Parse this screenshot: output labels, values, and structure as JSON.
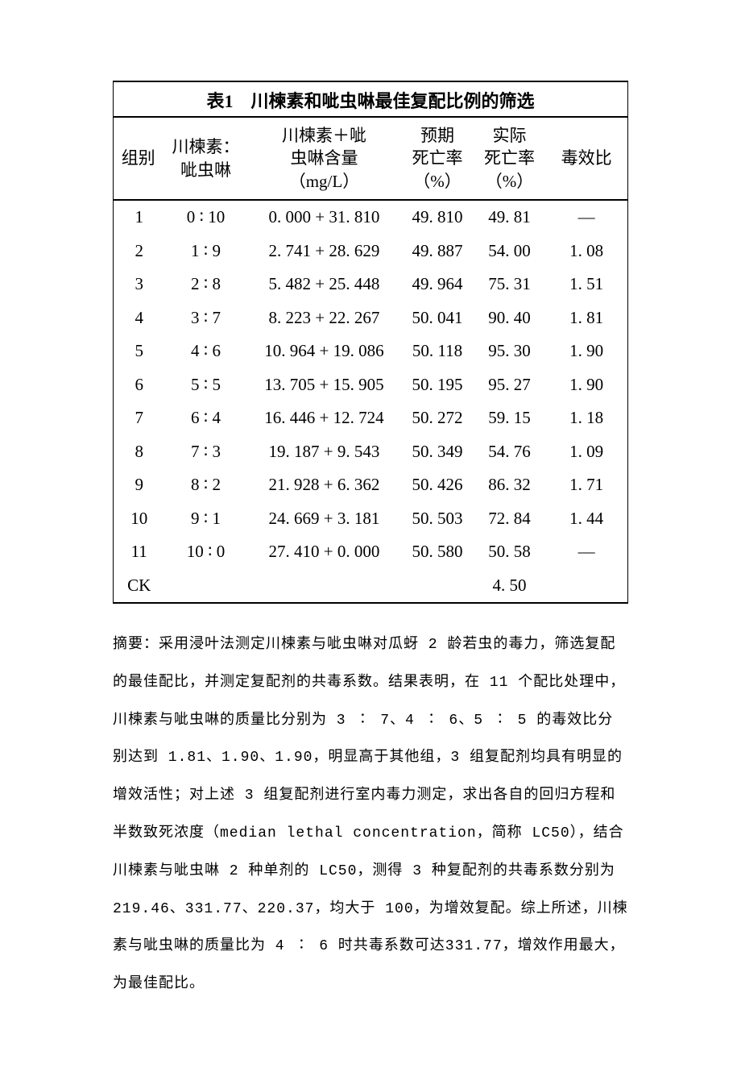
{
  "table": {
    "title": "表1　川楝素和呲虫啉最佳复配比例的筛选",
    "headers": {
      "group": "组别",
      "ratio": "川楝素：\n呲虫啉",
      "content": "川楝素＋呲\n虫啉含量\n（mg/L）",
      "expected": "预期\n死亡率\n（%）",
      "actual": "实际\n死亡率\n（%）",
      "toxratio": "毒效比"
    },
    "rows": [
      {
        "group": "1",
        "ratio": "0 ∶ 10",
        "content": "0. 000 + 31. 810",
        "expected": "49. 810",
        "actual": "49. 81",
        "toxratio": "—"
      },
      {
        "group": "2",
        "ratio": "1 ∶ 9",
        "content": "2. 741 + 28. 629",
        "expected": "49. 887",
        "actual": "54. 00",
        "toxratio": "1. 08"
      },
      {
        "group": "3",
        "ratio": "2 ∶ 8",
        "content": "5. 482 + 25. 448",
        "expected": "49. 964",
        "actual": "75. 31",
        "toxratio": "1. 51"
      },
      {
        "group": "4",
        "ratio": "3 ∶ 7",
        "content": "8. 223 + 22. 267",
        "expected": "50. 041",
        "actual": "90. 40",
        "toxratio": "1. 81"
      },
      {
        "group": "5",
        "ratio": "4 ∶ 6",
        "content": "10. 964 + 19. 086",
        "expected": "50. 118",
        "actual": "95. 30",
        "toxratio": "1. 90"
      },
      {
        "group": "6",
        "ratio": "5 ∶ 5",
        "content": "13. 705 + 15. 905",
        "expected": "50. 195",
        "actual": "95. 27",
        "toxratio": "1. 90"
      },
      {
        "group": "7",
        "ratio": "6 ∶ 4",
        "content": "16. 446 + 12. 724",
        "expected": "50. 272",
        "actual": "59. 15",
        "toxratio": "1. 18"
      },
      {
        "group": "8",
        "ratio": "7 ∶ 3",
        "content": "19. 187 + 9. 543",
        "expected": "50. 349",
        "actual": "54. 76",
        "toxratio": "1. 09"
      },
      {
        "group": "9",
        "ratio": "8 ∶ 2",
        "content": "21. 928 + 6. 362",
        "expected": "50. 426",
        "actual": "86. 32",
        "toxratio": "1. 71"
      },
      {
        "group": "10",
        "ratio": "9 ∶ 1",
        "content": "24. 669 + 3. 181",
        "expected": "50. 503",
        "actual": "72. 84",
        "toxratio": "1. 44"
      },
      {
        "group": "11",
        "ratio": "10 ∶ 0",
        "content": "27. 410 + 0. 000",
        "expected": "50. 580",
        "actual": "50. 58",
        "toxratio": "—"
      },
      {
        "group": "CK",
        "ratio": "",
        "content": "",
        "expected": "",
        "actual": "4. 50",
        "toxratio": ""
      }
    ],
    "col_widths_pct": [
      10,
      16,
      30,
      14,
      14,
      16
    ]
  },
  "abstract": "摘要：采用浸叶法测定川楝素与呲虫啉对瓜蚜 2 龄若虫的毒力，筛选复配的最佳配比，并测定复配剂的共毒系数。结果表明，在 11 个配比处理中，川楝素与呲虫啉的质量比分别为 3 ∶ 7、4 ∶ 6、5 ∶ 5 的毒效比分别达到 1.81、1.90、1.90，明显高于其他组，3 组复配剂均具有明显的增效活性；对上述 3 组复配剂进行室内毒力测定，求出各自的回归方程和半数致死浓度（median lethal concentration，简称 LC50），结合川楝素与呲虫啉 2 种单剂的 LC50，测得 3 种复配剂的共毒系数分别为 219.46、331.77、220.37，均大于 100，为增效复配。综上所述，川楝素与呲虫啉的质量比为 4 ∶ 6 时共毒系数可达331.77，增效作用最大，为最佳配比。"
}
